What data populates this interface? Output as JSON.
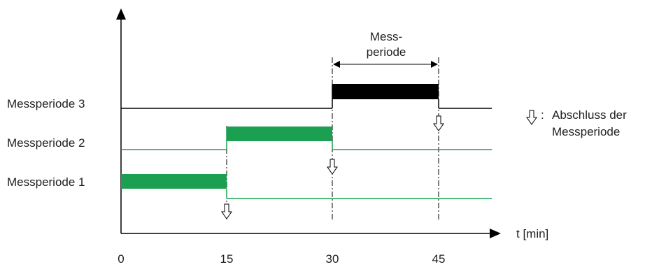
{
  "rows": [
    {
      "label": "Messperiode 3",
      "active_from": 30,
      "active_to": 45,
      "color": "#000000"
    },
    {
      "label": "Messperiode 2",
      "active_from": 15,
      "active_to": 30,
      "color": "#1aa050"
    },
    {
      "label": "Messperiode 1",
      "active_from": 0,
      "active_to": 15,
      "color": "#1aa050"
    }
  ],
  "x_ticks": [
    "0",
    "15",
    "30",
    "45"
  ],
  "x_axis_label": "t [min]",
  "period_annotation": {
    "line1": "Mess-",
    "line2": "periode"
  },
  "legend": {
    "separator": ":",
    "line1": "Abschluss der",
    "line2": "Messperiode"
  },
  "colors": {
    "green": "#1aa050",
    "black": "#000000"
  }
}
